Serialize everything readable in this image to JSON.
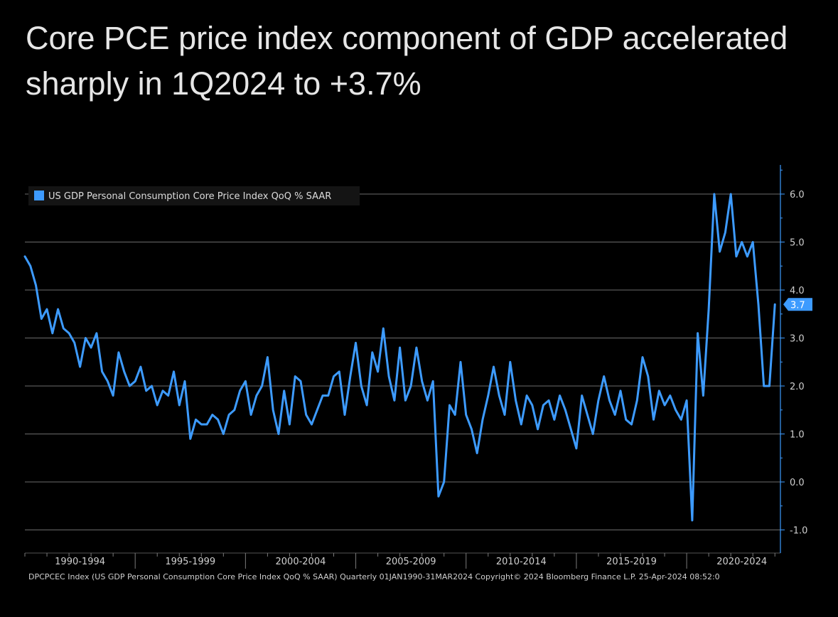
{
  "title": "Core PCE price index component of GDP accelerated sharply in 1Q2024 to +3.7%",
  "footer": "DPCPCEC Index (US GDP Personal Consumption Core Price Index QoQ % SAAR)  Quarterly 01JAN1990-31MAR2024  Copyright© 2024 Bloomberg Finance L.P.  25-Apr-2024 08:52:0",
  "colors": {
    "line": "#3d9bff",
    "grid": "#6b6b6b",
    "axis": "#3d9bff",
    "background": "#000000"
  },
  "chart_data": {
    "type": "line",
    "grid": true,
    "legend_position": "top-left",
    "ylim": [
      -1.5,
      6.5
    ],
    "yticks": [
      -1.0,
      0.0,
      1.0,
      2.0,
      3.0,
      4.0,
      5.0,
      6.0
    ],
    "ytick_labels": [
      "-1.0",
      "0.0",
      "1.0",
      "2.0",
      "3.0",
      "4.0",
      "5.0",
      "6.0"
    ],
    "x_range": [
      1990.0,
      2024.25
    ],
    "xtick_labels": [
      {
        "label": "1990-1994",
        "center": 1992.5
      },
      {
        "label": "1995-1999",
        "center": 1997.5
      },
      {
        "label": "2000-2004",
        "center": 2002.5
      },
      {
        "label": "2005-2009",
        "center": 2007.5
      },
      {
        "label": "2010-2014",
        "center": 2012.5
      },
      {
        "label": "2015-2019",
        "center": 2017.5
      },
      {
        "label": "2020-2024",
        "center": 2022.5
      }
    ],
    "last_value_label": "3.7",
    "series": [
      {
        "name": "US GDP Personal Consumption Core Price Index QoQ % SAAR",
        "x": [
          1990.0,
          1990.25,
          1990.5,
          1990.75,
          1991.0,
          1991.25,
          1991.5,
          1991.75,
          1992.0,
          1992.25,
          1992.5,
          1992.75,
          1993.0,
          1993.25,
          1993.5,
          1993.75,
          1994.0,
          1994.25,
          1994.5,
          1994.75,
          1995.0,
          1995.25,
          1995.5,
          1995.75,
          1996.0,
          1996.25,
          1996.5,
          1996.75,
          1997.0,
          1997.25,
          1997.5,
          1997.75,
          1998.0,
          1998.25,
          1998.5,
          1998.75,
          1999.0,
          1999.25,
          1999.5,
          1999.75,
          2000.0,
          2000.25,
          2000.5,
          2000.75,
          2001.0,
          2001.25,
          2001.5,
          2001.75,
          2002.0,
          2002.25,
          2002.5,
          2002.75,
          2003.0,
          2003.25,
          2003.5,
          2003.75,
          2004.0,
          2004.25,
          2004.5,
          2004.75,
          2005.0,
          2005.25,
          2005.5,
          2005.75,
          2006.0,
          2006.25,
          2006.5,
          2006.75,
          2007.0,
          2007.25,
          2007.5,
          2007.75,
          2008.0,
          2008.25,
          2008.5,
          2008.75,
          2009.0,
          2009.25,
          2009.5,
          2009.75,
          2010.0,
          2010.25,
          2010.5,
          2010.75,
          2011.0,
          2011.25,
          2011.5,
          2011.75,
          2012.0,
          2012.25,
          2012.5,
          2012.75,
          2013.0,
          2013.25,
          2013.5,
          2013.75,
          2014.0,
          2014.25,
          2014.5,
          2014.75,
          2015.0,
          2015.25,
          2015.5,
          2015.75,
          2016.0,
          2016.25,
          2016.5,
          2016.75,
          2017.0,
          2017.25,
          2017.5,
          2017.75,
          2018.0,
          2018.25,
          2018.5,
          2018.75,
          2019.0,
          2019.25,
          2019.5,
          2019.75,
          2020.0,
          2020.25,
          2020.5,
          2020.75,
          2021.0,
          2021.25,
          2021.5,
          2021.75,
          2022.0,
          2022.25,
          2022.5,
          2022.75,
          2023.0,
          2023.25,
          2023.5,
          2023.75,
          2024.0
        ],
        "values": [
          4.7,
          4.5,
          4.1,
          3.4,
          3.6,
          3.1,
          3.6,
          3.2,
          3.1,
          2.9,
          2.4,
          3.0,
          2.8,
          3.1,
          2.3,
          2.1,
          1.8,
          2.7,
          2.3,
          2.0,
          2.1,
          2.4,
          1.9,
          2.0,
          1.6,
          1.9,
          1.8,
          2.3,
          1.6,
          2.1,
          0.9,
          1.3,
          1.2,
          1.2,
          1.4,
          1.3,
          1.0,
          1.4,
          1.5,
          1.9,
          2.1,
          1.4,
          1.8,
          2.0,
          2.6,
          1.5,
          1.0,
          1.9,
          1.2,
          2.2,
          2.1,
          1.4,
          1.2,
          1.5,
          1.8,
          1.8,
          2.2,
          2.3,
          1.4,
          2.2,
          2.9,
          2.0,
          1.6,
          2.7,
          2.3,
          3.2,
          2.2,
          1.7,
          2.8,
          1.7,
          2.0,
          2.8,
          2.1,
          1.7,
          2.1,
          -0.3,
          0.0,
          1.6,
          1.4,
          2.5,
          1.4,
          1.1,
          0.6,
          1.3,
          1.8,
          2.4,
          1.8,
          1.4,
          2.5,
          1.7,
          1.2,
          1.8,
          1.6,
          1.1,
          1.6,
          1.7,
          1.3,
          1.8,
          1.5,
          1.1,
          0.7,
          1.8,
          1.4,
          1.0,
          1.7,
          2.2,
          1.7,
          1.4,
          1.9,
          1.3,
          1.2,
          1.7,
          2.6,
          2.2,
          1.3,
          1.9,
          1.6,
          1.8,
          1.5,
          1.3,
          1.7,
          -0.8,
          3.1,
          1.8,
          3.6,
          6.0,
          4.8,
          5.2,
          6.0,
          4.7,
          5.0,
          4.7,
          5.0,
          3.7,
          2.0,
          2.0,
          3.7
        ]
      }
    ]
  }
}
